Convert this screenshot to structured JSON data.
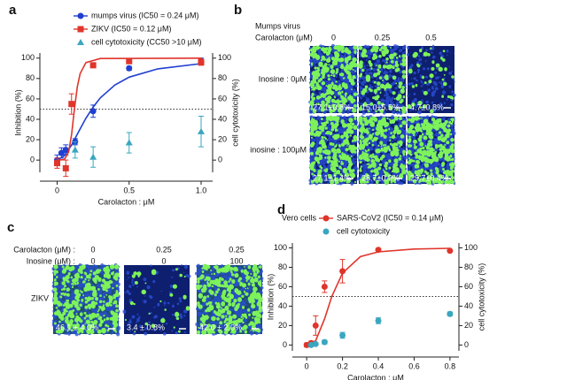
{
  "panel_labels": [
    "a",
    "b",
    "c",
    "d"
  ],
  "chart_data": [
    {
      "type": "scatter",
      "ylabel": "Inhibition (%)",
      "y2label": "cell cytotoxicity (%)",
      "xlabel": "Carolacton : μM",
      "xlim": [
        -0.12,
        1.08
      ],
      "xticks": [
        0,
        0.5,
        {
          "value": 1,
          "label": "1.0"
        }
      ],
      "ylim": [
        -12,
        105
      ],
      "yticks": [
        0,
        20,
        40,
        60,
        80,
        100
      ],
      "y2lim": [
        -12,
        105
      ],
      "y2ticks": [
        0,
        20,
        40,
        60,
        80,
        100
      ],
      "ref_line": 50,
      "series": [
        {
          "name": "mumps virus (IC50 = 0.24 μM)",
          "color": "#1f3fd1",
          "marker": "circle",
          "x": [
            0,
            0.03,
            0.06,
            0.125,
            0.25,
            0.5,
            1.0
          ],
          "values": [
            0,
            7,
            10,
            18,
            48,
            90,
            97
          ],
          "errors": [
            5,
            5,
            5,
            3,
            6,
            2,
            3
          ],
          "fit": {
            "x": [
              0,
              0.05,
              0.1,
              0.15,
              0.2,
              0.25,
              0.3,
              0.4,
              0.5,
              0.7,
              1.0
            ],
            "values": [
              0,
              4.2,
              14.8,
              28.1,
              41,
              52,
              61,
              73.5,
              81.3,
              89.5,
              94.6
            ]
          }
        },
        {
          "name": "ZIKV (IC50 = 0.12 μM)",
          "color": "#e0352b",
          "marker": "square",
          "x": [
            0,
            0.06,
            0.1,
            0.25,
            0.5,
            1.0
          ],
          "values": [
            -3,
            -8,
            55,
            93,
            97,
            96
          ],
          "errors": [
            5,
            8,
            10,
            2,
            2,
            3
          ],
          "fit": {
            "x": [
              0,
              0.05,
              0.08,
              0.1,
              0.12,
              0.14,
              0.16,
              0.2,
              0.3,
              1.0
            ],
            "values": [
              0,
              0.5,
              8,
              25,
              50,
              72,
              85,
              95.6,
              99.6,
              100
            ]
          }
        },
        {
          "name": "cell cytotoxicity (CC50 >10 μM)",
          "color": "#3aa6c0",
          "marker": "triangle",
          "axis": "y2",
          "x": [
            0.125,
            0.25,
            0.5,
            1.0
          ],
          "values": [
            10,
            3,
            17,
            28
          ],
          "errors": [
            8,
            10,
            10,
            15
          ]
        }
      ]
    },
    {
      "type": "scatter",
      "annotation": "Vero cells",
      "ylabel": "Inhibition (%)",
      "y2label": "cell cytotoxicity (%)",
      "xlabel": "Carolacton : μM",
      "xlim": [
        -0.08,
        0.85
      ],
      "xticks": [
        0,
        0.2,
        0.4,
        0.6,
        0.8
      ],
      "ylim": [
        -6,
        105
      ],
      "yticks": [
        0,
        20,
        40,
        60,
        80,
        100
      ],
      "y2lim": [
        -6,
        105
      ],
      "y2ticks": [
        0,
        20,
        40,
        60,
        80,
        100
      ],
      "ref_line": 50,
      "series": [
        {
          "name": "SARS-CoV2 (IC50 = 0.14 μM)",
          "color": "#e0352b",
          "marker": "circle",
          "x": [
            0,
            0.025,
            0.05,
            0.1,
            0.2,
            0.4,
            0.8
          ],
          "values": [
            0,
            2,
            20,
            60,
            76,
            98,
            97
          ],
          "errors": [
            2,
            2,
            10,
            6,
            12,
            1,
            1
          ],
          "fit": {
            "x": [
              0,
              0.05,
              0.1,
              0.14,
              0.2,
              0.3,
              0.4,
              0.6,
              0.8
            ],
            "values": [
              0,
              4.4,
              27,
              50,
              74,
              91,
              95.9,
              98.8,
              99.5
            ]
          }
        },
        {
          "name": "cell cytotoxicity",
          "color": "#3aa6c0",
          "marker": "circle",
          "axis": "y2",
          "x": [
            0.025,
            0.05,
            0.1,
            0.2,
            0.4,
            0.8
          ],
          "values": [
            0,
            1,
            3,
            10,
            25,
            32
          ],
          "errors": [
            1,
            1,
            2,
            3,
            3,
            2
          ]
        }
      ]
    }
  ],
  "panel_b": {
    "virus": "Mumps virus",
    "dose_label": "Carolacton (μM)",
    "columns": [
      "0",
      "0.25",
      "0.5"
    ],
    "rows": [
      "Inosine : 0μM",
      "inosine : 100μM"
    ],
    "cells": [
      [
        "27.1±0.8%",
        "15.0±5.5%",
        "4.7±0.8%"
      ],
      [
        "27.1±1.4%",
        "28.7±0.9%",
        "29.7±0.4%"
      ]
    ]
  },
  "panel_c": {
    "row_labels": [
      "Carolacton (μM) :",
      "Inosine (μM) :"
    ],
    "carolacton": [
      "0",
      "0.25",
      "0.25"
    ],
    "inosine": [
      "0",
      "0",
      "100"
    ],
    "virus": "ZIKV",
    "cells": [
      "46.1 ± 4.0%",
      "3.4 ± 0.8%",
      "42.0 ± 2.0%"
    ]
  }
}
